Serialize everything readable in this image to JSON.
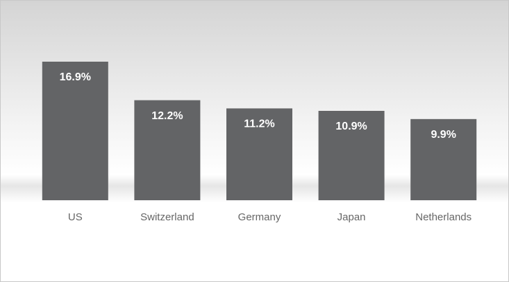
{
  "chart_data": {
    "type": "bar",
    "categories": [
      "US",
      "Switzerland",
      "Germany",
      "Japan",
      "Netherlands"
    ],
    "values": [
      16.9,
      12.2,
      11.2,
      10.9,
      9.9
    ],
    "value_labels": [
      "16.9%",
      "12.2%",
      "11.2%",
      "10.9%",
      "9.9%"
    ],
    "color": "#636466"
  }
}
